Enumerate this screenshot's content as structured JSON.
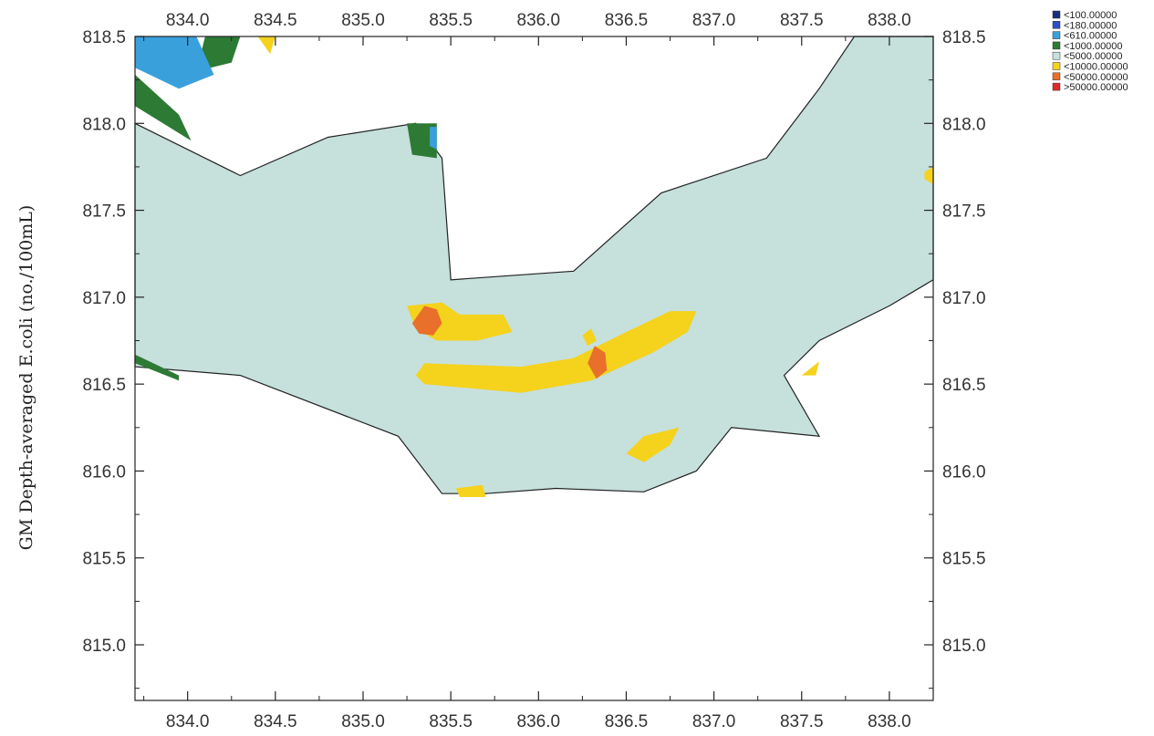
{
  "chart_data": {
    "type": "heatmap",
    "title": "",
    "xlabel": "",
    "ylabel": "GM Depth-averaged E.coli (no./100mL)",
    "xlim": [
      833.7,
      838.25
    ],
    "ylim": [
      814.68,
      818.5
    ],
    "x_ticks": [
      "834.0",
      "834.5",
      "835.0",
      "835.5",
      "836.0",
      "836.5",
      "837.0",
      "837.5",
      "838.0"
    ],
    "y_ticks": [
      "818.5",
      "818.0",
      "817.5",
      "817.0",
      "816.5",
      "816.0",
      "815.5",
      "815.0"
    ],
    "legend": {
      "placement": "top-right, outside plot",
      "entries": [
        {
          "label": "<100.00000",
          "color": "#1a2f7a"
        },
        {
          "label": "<180.00000",
          "color": "#2f4fc4"
        },
        {
          "label": "<610.00000",
          "color": "#3aa0dc"
        },
        {
          "label": "<1000.00000",
          "color": "#2d7a35"
        },
        {
          "label": "<5000.00000",
          "color": "#c6e0dc"
        },
        {
          "label": "<10000.00000",
          "color": "#f5d21c"
        },
        {
          "label": "<50000.00000",
          "color": "#e8702a"
        },
        {
          "label": ">50000.00000",
          "color": "#e02828"
        }
      ]
    },
    "zones": [
      {
        "category": "<5000.00000",
        "color": "#c6e0dc",
        "polygon": [
          [
            833.7,
            818.0
          ],
          [
            834.3,
            817.7
          ],
          [
            834.8,
            817.92
          ],
          [
            835.3,
            818.0
          ],
          [
            835.45,
            817.8
          ],
          [
            835.5,
            817.1
          ],
          [
            836.2,
            817.15
          ],
          [
            836.7,
            817.6
          ],
          [
            837.3,
            817.8
          ],
          [
            837.6,
            818.2
          ],
          [
            837.8,
            818.5
          ],
          [
            838.25,
            818.5
          ],
          [
            838.25,
            817.1
          ],
          [
            838.0,
            816.95
          ],
          [
            837.6,
            816.75
          ],
          [
            837.4,
            816.55
          ],
          [
            837.6,
            816.2
          ],
          [
            837.1,
            816.25
          ],
          [
            836.9,
            816.0
          ],
          [
            836.6,
            815.88
          ],
          [
            836.1,
            815.9
          ],
          [
            835.7,
            815.87
          ],
          [
            835.45,
            815.87
          ],
          [
            835.2,
            816.2
          ],
          [
            834.3,
            816.55
          ],
          [
            833.7,
            816.6
          ]
        ]
      },
      {
        "category": "<1000.00000",
        "color": "#2d7a35",
        "polygon": [
          [
            833.7,
            818.28
          ],
          [
            833.95,
            818.05
          ],
          [
            834.02,
            817.9
          ],
          [
            833.7,
            818.1
          ]
        ]
      },
      {
        "category": "<1000.00000",
        "color": "#2d7a35",
        "polygon": [
          [
            834.1,
            818.5
          ],
          [
            834.3,
            818.5
          ],
          [
            834.25,
            818.35
          ],
          [
            834.05,
            818.3
          ]
        ]
      },
      {
        "category": "<1000.00000",
        "color": "#2d7a35",
        "polygon": [
          [
            835.25,
            818.0
          ],
          [
            835.42,
            818.0
          ],
          [
            835.42,
            817.8
          ],
          [
            835.28,
            817.82
          ]
        ]
      },
      {
        "category": "<1000.00000",
        "color": "#2d7a35",
        "polygon": [
          [
            833.7,
            816.67
          ],
          [
            833.95,
            816.55
          ],
          [
            833.95,
            816.52
          ],
          [
            833.7,
            816.62
          ]
        ]
      },
      {
        "category": "<610.00000",
        "color": "#3aa0dc",
        "polygon": [
          [
            833.7,
            818.5
          ],
          [
            834.05,
            818.5
          ],
          [
            834.15,
            818.28
          ],
          [
            833.95,
            818.2
          ],
          [
            833.7,
            818.32
          ]
        ]
      },
      {
        "category": "<610.00000",
        "color": "#3aa0dc",
        "polygon": [
          [
            835.38,
            817.98
          ],
          [
            835.42,
            817.98
          ],
          [
            835.42,
            817.85
          ],
          [
            835.38,
            817.87
          ]
        ]
      },
      {
        "category": "<10000.00000",
        "color": "#f5d21c",
        "polygon": [
          [
            835.25,
            816.95
          ],
          [
            835.45,
            816.97
          ],
          [
            835.55,
            816.9
          ],
          [
            835.8,
            816.9
          ],
          [
            835.85,
            816.8
          ],
          [
            835.65,
            816.75
          ],
          [
            835.42,
            816.75
          ],
          [
            835.3,
            816.82
          ]
        ]
      },
      {
        "category": "<10000.00000",
        "color": "#f5d21c",
        "polygon": [
          [
            835.3,
            816.55
          ],
          [
            835.35,
            816.5
          ],
          [
            835.9,
            816.45
          ],
          [
            836.3,
            816.52
          ],
          [
            836.65,
            816.68
          ],
          [
            836.85,
            816.8
          ],
          [
            836.9,
            816.92
          ],
          [
            836.75,
            816.92
          ],
          [
            836.5,
            816.8
          ],
          [
            836.2,
            816.65
          ],
          [
            835.9,
            816.6
          ],
          [
            835.35,
            816.62
          ]
        ]
      },
      {
        "category": "<10000.00000",
        "color": "#f5d21c",
        "polygon": [
          [
            836.25,
            816.78
          ],
          [
            836.3,
            816.82
          ],
          [
            836.33,
            816.75
          ],
          [
            836.28,
            816.72
          ]
        ]
      },
      {
        "category": "<10000.00000",
        "color": "#f5d21c",
        "polygon": [
          [
            836.5,
            816.1
          ],
          [
            836.6,
            816.2
          ],
          [
            836.8,
            816.25
          ],
          [
            836.75,
            816.15
          ],
          [
            836.6,
            816.05
          ]
        ]
      },
      {
        "category": "<10000.00000",
        "color": "#f5d21c",
        "polygon": [
          [
            835.53,
            815.9
          ],
          [
            835.68,
            815.92
          ],
          [
            835.7,
            815.85
          ],
          [
            835.55,
            815.85
          ]
        ]
      },
      {
        "category": "<10000.00000",
        "color": "#f5d21c",
        "polygon": [
          [
            837.5,
            816.55
          ],
          [
            837.6,
            816.63
          ],
          [
            837.58,
            816.55
          ]
        ]
      },
      {
        "category": "<10000.00000",
        "color": "#f5d21c",
        "polygon": [
          [
            838.2,
            817.72
          ],
          [
            838.25,
            817.75
          ],
          [
            838.25,
            817.65
          ],
          [
            838.2,
            817.68
          ]
        ]
      },
      {
        "category": "<10000.00000",
        "color": "#f5d21c",
        "polygon": [
          [
            834.4,
            818.5
          ],
          [
            834.5,
            818.5
          ],
          [
            834.47,
            818.4
          ]
        ]
      },
      {
        "category": "<50000.00000",
        "color": "#e8702a",
        "polygon": [
          [
            835.28,
            816.85
          ],
          [
            835.35,
            816.95
          ],
          [
            835.42,
            816.93
          ],
          [
            835.45,
            816.85
          ],
          [
            835.4,
            816.78
          ],
          [
            835.32,
            816.79
          ]
        ]
      },
      {
        "category": "<50000.00000",
        "color": "#e8702a",
        "polygon": [
          [
            836.28,
            816.62
          ],
          [
            836.32,
            816.72
          ],
          [
            836.38,
            816.68
          ],
          [
            836.39,
            816.58
          ],
          [
            836.33,
            816.53
          ]
        ]
      }
    ]
  }
}
